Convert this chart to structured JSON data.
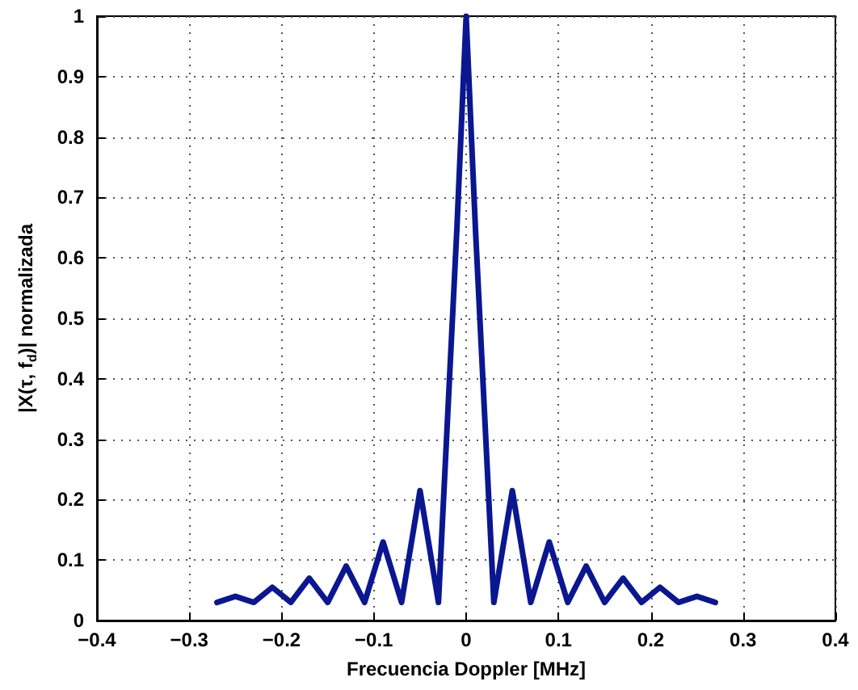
{
  "chart_data": {
    "type": "line",
    "xlabel": "Frecuencia Doppler [MHz]",
    "ylabel": "|X(τ, f$_{d}$)| normalizada",
    "x": [
      -0.27,
      -0.25,
      -0.23,
      -0.21,
      -0.19,
      -0.17,
      -0.15,
      -0.13,
      -0.11,
      -0.09,
      -0.07,
      -0.05,
      -0.03,
      -0.01,
      0,
      0.01,
      0.03,
      0.05,
      0.07,
      0.09,
      0.11,
      0.13,
      0.15,
      0.17,
      0.19,
      0.21,
      0.23,
      0.25,
      0.27
    ],
    "series": [
      {
        "color": "#0a1790",
        "values": [
          0.03,
          0.04,
          0.03,
          0.055,
          0.03,
          0.07,
          0.03,
          0.09,
          0.03,
          0.13,
          0.03,
          0.215,
          0.03,
          0.65,
          1,
          0.65,
          0.03,
          0.215,
          0.03,
          0.13,
          0.03,
          0.09,
          0.03,
          0.07,
          0.03,
          0.055,
          0.03,
          0.04,
          0.03
        ]
      }
    ],
    "xlim": [
      -0.4,
      0.4
    ],
    "xticks": [
      {
        "value": -0.4,
        "label": "−0.4"
      },
      {
        "value": -0.3,
        "label": "−0.3"
      },
      {
        "value": -0.2,
        "label": "−0.2"
      },
      {
        "value": -0.1,
        "label": "−0.1"
      },
      0,
      0.1,
      0.2,
      0.3,
      0.4
    ],
    "ylim": [
      0,
      1
    ],
    "yticks": [
      0,
      0.1,
      0.2,
      0.3,
      0.4,
      0.5,
      0.6,
      0.7,
      0.8,
      0.9,
      1
    ],
    "grid": true,
    "marker": "none",
    "line_style": "solid"
  }
}
